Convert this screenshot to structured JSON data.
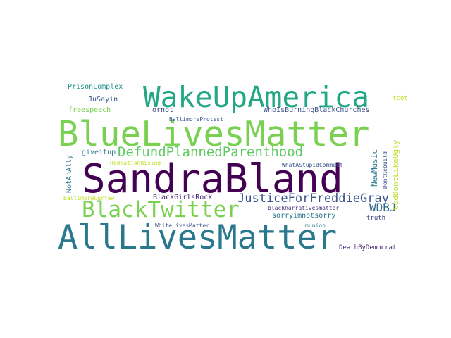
{
  "word_cloud": {
    "words": [
      {
        "text": "SandraBland",
        "color": "#440154"
      },
      {
        "text": "BlueLivesMatter",
        "color": "#7ad151"
      },
      {
        "text": "AllLivesMatter",
        "color": "#2a788e"
      },
      {
        "text": "WakeUpAmerica",
        "color": "#22a884"
      },
      {
        "text": "BlackTwitter",
        "color": "#7ad151"
      },
      {
        "text": "DefundPlannedParenthood",
        "color": "#5ec962"
      },
      {
        "text": "JusticeForFreddieGray",
        "color": "#3b528b"
      },
      {
        "text": "WDBJ",
        "color": "#31688e"
      },
      {
        "text": "PrisonComplex",
        "color": "#21918c"
      },
      {
        "text": "JuSayin",
        "color": "#3b528b"
      },
      {
        "text": "freespeech",
        "color": "#7ad151"
      },
      {
        "text": "ornot",
        "color": "#414487"
      },
      {
        "text": "BaltimoreProtest",
        "color": "#3b528b"
      },
      {
        "text": "WhoIsBurningBlackChurches",
        "color": "#3b528b"
      },
      {
        "text": "tcot",
        "color": "#bddf26"
      },
      {
        "text": "giveitup",
        "color": "#2a788e"
      },
      {
        "text": "RedNationRising",
        "color": "#bddf26"
      },
      {
        "text": "WhatAStupidComment",
        "color": "#3b528b"
      },
      {
        "text": "NewMusic",
        "color": "#2a788e"
      },
      {
        "text": "DontRebuild",
        "color": "#3b528b"
      },
      {
        "text": "GodDontLikeUgly",
        "color": "#bddf26"
      },
      {
        "text": "NotAnAlly",
        "color": "#2a788e"
      },
      {
        "text": "BaltimoreCurfew",
        "color": "#bddf26"
      },
      {
        "text": "BlackGirlsRock",
        "color": "#482878"
      },
      {
        "text": "blacknarrativesmatter",
        "color": "#46327e"
      },
      {
        "text": "sorryimnotsorry",
        "color": "#2a788e"
      },
      {
        "text": "truth",
        "color": "#414487"
      },
      {
        "text": "WhiteLivesMatter",
        "color": "#3b528b"
      },
      {
        "text": "munion",
        "color": "#2a788e"
      },
      {
        "text": "DeathByDemocrat",
        "color": "#482878"
      }
    ]
  }
}
